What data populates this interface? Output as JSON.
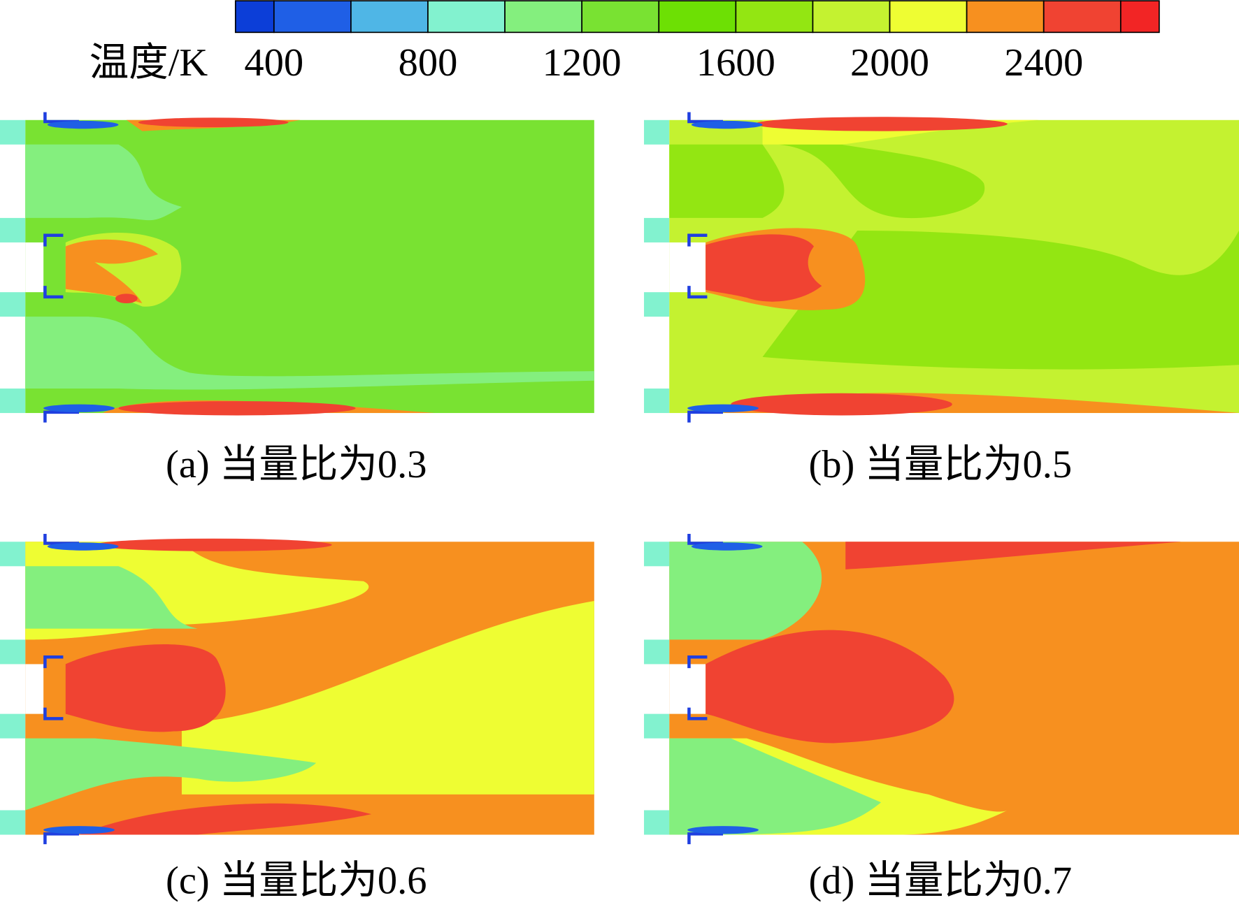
{
  "colorbar": {
    "label": "温度/K",
    "boundaries": [
      300,
      400,
      600,
      800,
      1000,
      1200,
      1400,
      1600,
      1800,
      2000,
      2200,
      2400,
      2600,
      2700
    ],
    "ticks": [
      400,
      800,
      1200,
      1600,
      2000,
      2400
    ],
    "colors": [
      "#0c3ed8",
      "#1f5fe6",
      "#4fb6e6",
      "#82f2cf",
      "#84ef7e",
      "#79e232",
      "#6de004",
      "#93e612",
      "#c4f230",
      "#eefd33",
      "#f7901f",
      "#f04332",
      "#f22525"
    ]
  },
  "panels": [
    {
      "caption": "(a) 当量比为0.3"
    },
    {
      "caption": "(b) 当量比为0.5"
    },
    {
      "caption": "(c) 当量比为0.6"
    },
    {
      "caption": "(d) 当量比为0.7"
    }
  ]
}
